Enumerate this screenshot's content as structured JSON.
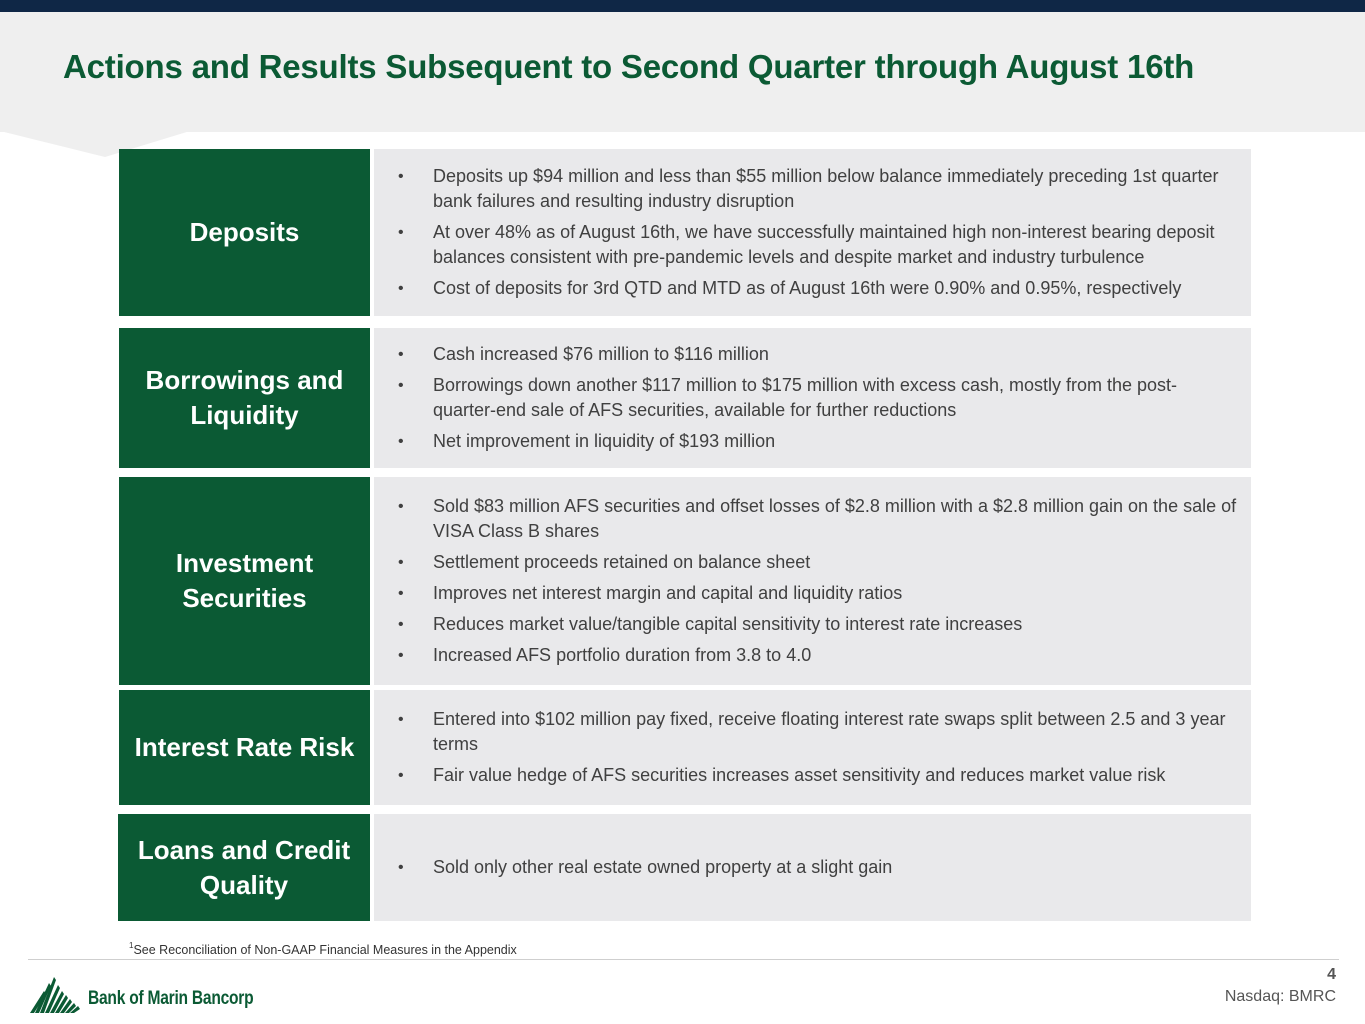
{
  "slide": {
    "title": "Actions and Results Subsequent to Second Quarter through August 16th"
  },
  "sections": [
    {
      "label": "Deposits",
      "bullets": [
        "Deposits up $94 million and less than $55 million below balance immediately preceding 1st quarter bank failures and resulting industry disruption",
        "At over 48% as of August 16th, we have successfully maintained high non-interest bearing deposit balances consistent with pre-pandemic levels and despite market and industry turbulence",
        "Cost of deposits for 3rd QTD and MTD as of August 16th were 0.90% and 0.95%, respectively"
      ]
    },
    {
      "label": "Borrowings and Liquidity",
      "bullets": [
        "Cash increased $76 million to $116 million",
        "Borrowings down another $117 million to $175 million with excess cash, mostly from the post-quarter-end sale of AFS securities, available for further reductions",
        "Net improvement in liquidity of $193 million"
      ]
    },
    {
      "label": "Investment Securities",
      "bullets": [
        "Sold $83 million AFS securities and offset losses of $2.8 million with a $2.8 million gain on the sale of VISA Class B shares",
        "Settlement proceeds retained on balance sheet",
        "Improves net interest margin and capital and liquidity ratios",
        "Reduces market value/tangible capital sensitivity to interest rate increases",
        "Increased AFS portfolio duration from 3.8 to 4.0"
      ]
    },
    {
      "label": "Interest Rate Risk",
      "bullets": [
        "Entered into $102 million pay fixed, receive floating interest rate swaps split between 2.5 and 3 year terms",
        "Fair value hedge of AFS securities increases asset sensitivity and reduces market value risk"
      ]
    },
    {
      "label": "Loans and Credit Quality",
      "bullets": [
        "Sold only other real estate owned property at a slight gain"
      ]
    }
  ],
  "bullet_glyph": "•",
  "footnote": {
    "marker": "1",
    "text": "See Reconciliation of Non-GAAP Financial Measures in the Appendix"
  },
  "footer": {
    "logo_text": "Bank of Marin Bancorp",
    "page_number": "4",
    "ticker": "Nasdaq: BMRC"
  },
  "colors": {
    "brand_green": "#0b5a34",
    "top_bar_navy": "#0f2746",
    "panel_gray": "#e9e9eb",
    "header_gray": "#efefef"
  }
}
